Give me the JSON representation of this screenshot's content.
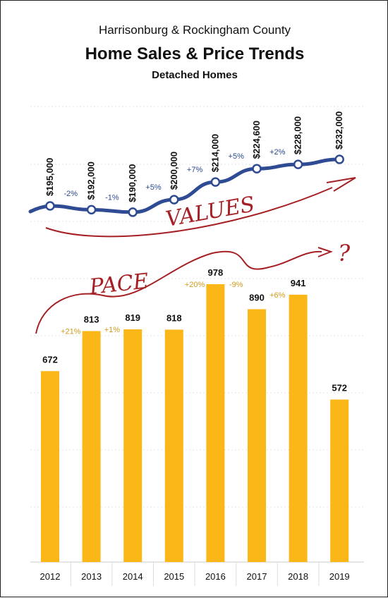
{
  "header": {
    "supertitle": "Harrisonburg & Rockingham County",
    "title": "Home Sales & Price Trends",
    "subtitle": "Detached Homes"
  },
  "annotations": {
    "values_label": "VALUES",
    "pace_label": "PACE",
    "question": "?",
    "ink_color": "#a52025"
  },
  "chart_data": {
    "type": "bar",
    "categories": [
      "2012",
      "2013",
      "2014",
      "2015",
      "2016",
      "2017",
      "2018",
      "2019"
    ],
    "bar_color": "#fbb718",
    "line_color": "#2e4b94",
    "grid": true,
    "series": [
      {
        "kind": "bar",
        "values": [
          672,
          813,
          819,
          818,
          978,
          890,
          941,
          572
        ],
        "labels": [
          "672",
          "813",
          "819",
          "818",
          "978",
          "890",
          "941",
          "572"
        ],
        "changes": [
          "",
          "+21%",
          "+1%",
          "",
          "+20%",
          "-9%",
          "+6%",
          ""
        ]
      },
      {
        "kind": "line",
        "values": [
          195000,
          192000,
          190000,
          200000,
          214000,
          224600,
          228000,
          232000
        ],
        "labels": [
          "$195,000",
          "$192,000",
          "$190,000",
          "$200,000",
          "$214,000",
          "$224,600",
          "$228,000",
          "$232,000"
        ],
        "changes": [
          "",
          "-2%",
          "-1%",
          "+5%",
          "+7%",
          "+5%",
          "+2%",
          ""
        ]
      }
    ]
  }
}
